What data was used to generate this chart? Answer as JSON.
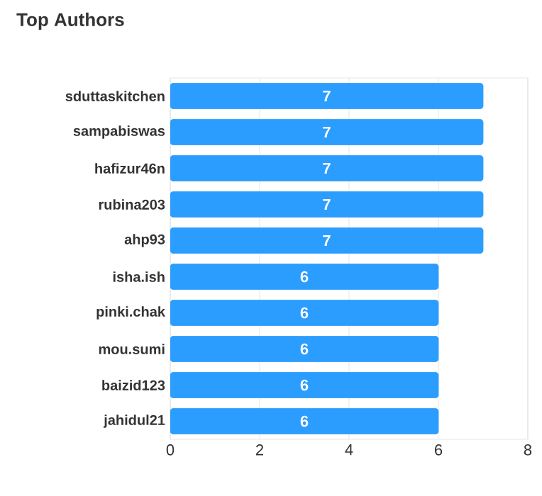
{
  "chart_data": {
    "type": "bar",
    "orientation": "horizontal",
    "title": "Top Authors",
    "categories": [
      "sduttaskitchen",
      "sampabiswas",
      "hafizur46n",
      "rubina203",
      "ahp93",
      "isha.ish",
      "pinki.chak",
      "mou.sumi",
      "baizid123",
      "jahidul21"
    ],
    "values": [
      7,
      7,
      7,
      7,
      7,
      6,
      6,
      6,
      6,
      6
    ],
    "color": "#2b9dff",
    "xlim": [
      0,
      8
    ],
    "xticks": [
      0,
      2,
      4,
      6,
      8
    ],
    "grid": "x",
    "data_labels": true
  }
}
